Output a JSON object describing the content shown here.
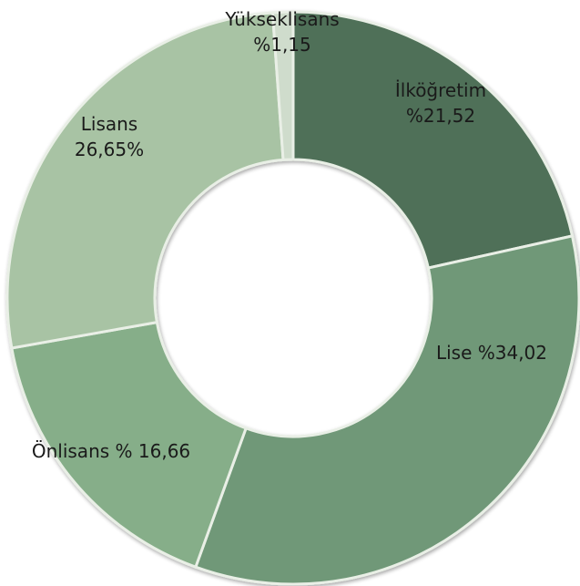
{
  "chart_data": {
    "type": "pie",
    "variant": "doughnut",
    "legend": "none",
    "title": "",
    "slices": [
      {
        "name": "İlköğretim",
        "value": 21.52,
        "label_lines": [
          "İlköğretim",
          "%21,52"
        ],
        "color": "#4f6f58"
      },
      {
        "name": "Lise",
        "value": 34.02,
        "label_lines": [
          "Lise %34,02"
        ],
        "color": "#6f9878"
      },
      {
        "name": "Önlisans",
        "value": 16.66,
        "label_lines": [
          "Önlisans % 16,66"
        ],
        "color": "#86ae89"
      },
      {
        "name": "Lisans",
        "value": 26.65,
        "label_lines": [
          "Lisans",
          "26,65%"
        ],
        "color": "#a8c3a4"
      },
      {
        "name": "Yükseklisans",
        "value": 1.15,
        "label_lines": [
          "Yükseklisans",
          "%1,15"
        ],
        "color": "#cfdccc"
      }
    ]
  }
}
